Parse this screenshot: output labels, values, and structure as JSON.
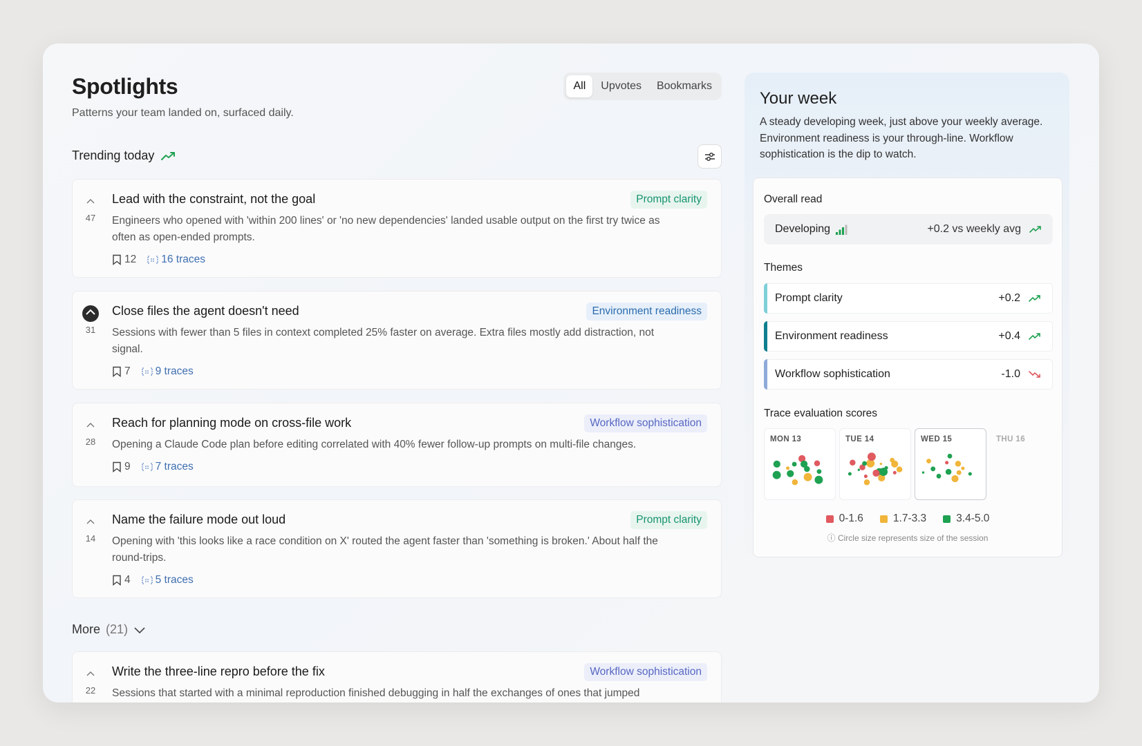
{
  "header": {
    "title": "Spotlights",
    "subtitle": "Patterns your team landed on, surfaced daily.",
    "tabs": [
      "All",
      "Upvotes",
      "Bookmarks"
    ],
    "active_tab": "All"
  },
  "trending": {
    "label": "Trending today",
    "icon": "trending-up-icon"
  },
  "colors": {
    "prompt": "#17936f",
    "env": "#2b6cae",
    "workflow": "#5667c2",
    "red": "#e05a5f",
    "yellow": "#f0b53a",
    "green": "#1fa152"
  },
  "cards": [
    {
      "votes": "47",
      "upvoted": false,
      "title": "Lead with the constraint, not the goal",
      "tag": "Prompt clarity",
      "desc": "Engineers who opened with 'within 200 lines' or 'no new dependencies' landed usable output on the first try twice as often as open-ended prompts.",
      "bookmarks": "12",
      "traces": "16 traces"
    },
    {
      "votes": "31",
      "upvoted": true,
      "title": "Close files the agent doesn't need",
      "tag": "Environment readiness",
      "desc": "Sessions with fewer than 5 files in context completed 25% faster on average. Extra files mostly add distraction, not signal.",
      "bookmarks": "7",
      "traces": "9 traces"
    },
    {
      "votes": "28",
      "upvoted": false,
      "title": "Reach for planning mode on cross-file work",
      "tag": "Workflow sophistication",
      "desc": "Opening a Claude Code plan before editing correlated with 40% fewer follow-up prompts on multi-file changes.",
      "bookmarks": "9",
      "traces": "7 traces"
    },
    {
      "votes": "14",
      "upvoted": false,
      "title": "Name the failure mode out loud",
      "tag": "Prompt clarity",
      "desc": "Opening with 'this looks like a race condition on X' routed the agent faster than 'something is broken.' About half the round-trips.",
      "bookmarks": "4",
      "traces": "5 traces"
    }
  ],
  "more": {
    "label": "More",
    "count": "(21)"
  },
  "more_cards": [
    {
      "votes": "22",
      "upvoted": false,
      "title": "Write the three-line repro before the fix",
      "tag": "Workflow sophistication",
      "desc": "Sessions that started with a minimal reproduction finished debugging in half the exchanges of ones that jumped"
    }
  ],
  "week": {
    "title": "Your week",
    "intro": "A steady developing week, just above your weekly average. Environment readiness is your through-line. Workflow sophistication is the dip to watch.",
    "overall_label": "Overall read",
    "level": "Developing",
    "level_bars": 3,
    "level_max": 4,
    "delta": "+0.2 vs weekly avg",
    "themes_label": "Themes",
    "themes": [
      {
        "name": "Prompt clarity",
        "delta": "+0.2",
        "dir": "up",
        "color": "#7fd0d8"
      },
      {
        "name": "Environment readiness",
        "delta": "+0.4",
        "dir": "up",
        "color": "#0f7f8e"
      },
      {
        "name": "Workflow sophistication",
        "delta": "-1.0",
        "dir": "down",
        "color": "#8eaad9"
      }
    ],
    "scores_label": "Trace evaluation scores",
    "days": [
      {
        "label": "MON 13",
        "selected": false,
        "dots": [
          [
            "g",
            5
          ],
          [
            "g",
            6
          ],
          [
            "r",
            6
          ],
          [
            "g",
            7
          ],
          [
            "y",
            3
          ],
          [
            "r",
            5
          ],
          [
            "y",
            5
          ],
          [
            "g",
            4
          ],
          [
            "g",
            4
          ],
          [
            "g",
            7
          ],
          [
            "g",
            6
          ],
          [
            "y",
            7
          ],
          [
            "g",
            6
          ]
        ]
      },
      {
        "label": "TUE 14",
        "selected": false,
        "dots": [
          [
            "g",
            6
          ],
          [
            "r",
            5
          ],
          [
            "y",
            6
          ],
          [
            "y",
            5
          ],
          [
            "y",
            7
          ],
          [
            "r",
            3
          ],
          [
            "g",
            3
          ],
          [
            "y",
            2
          ],
          [
            "y",
            6
          ],
          [
            "r",
            5
          ],
          [
            "g",
            3
          ],
          [
            "r",
            3
          ],
          [
            "r",
            7
          ],
          [
            "g",
            7
          ],
          [
            "g",
            2
          ],
          [
            "y",
            4
          ],
          [
            "r",
            6
          ],
          [
            "g",
            4
          ],
          [
            "y",
            5
          ]
        ]
      },
      {
        "label": "WED 15",
        "selected": true,
        "dots": [
          [
            "g",
            5
          ],
          [
            "r",
            3
          ],
          [
            "g",
            3
          ],
          [
            "g",
            2
          ],
          [
            "y",
            5
          ],
          [
            "y",
            6
          ],
          [
            "y",
            4
          ],
          [
            "y",
            3
          ],
          [
            "g",
            4
          ],
          [
            "g",
            4
          ],
          [
            "y",
            4
          ],
          [
            "g",
            4
          ]
        ]
      },
      {
        "label": "THU 16",
        "selected": false,
        "future": true,
        "dots": []
      }
    ],
    "legend": [
      "0-1.6",
      "1.7-3.3",
      "3.4-5.0"
    ],
    "note": "Circle size represents size of the session"
  }
}
